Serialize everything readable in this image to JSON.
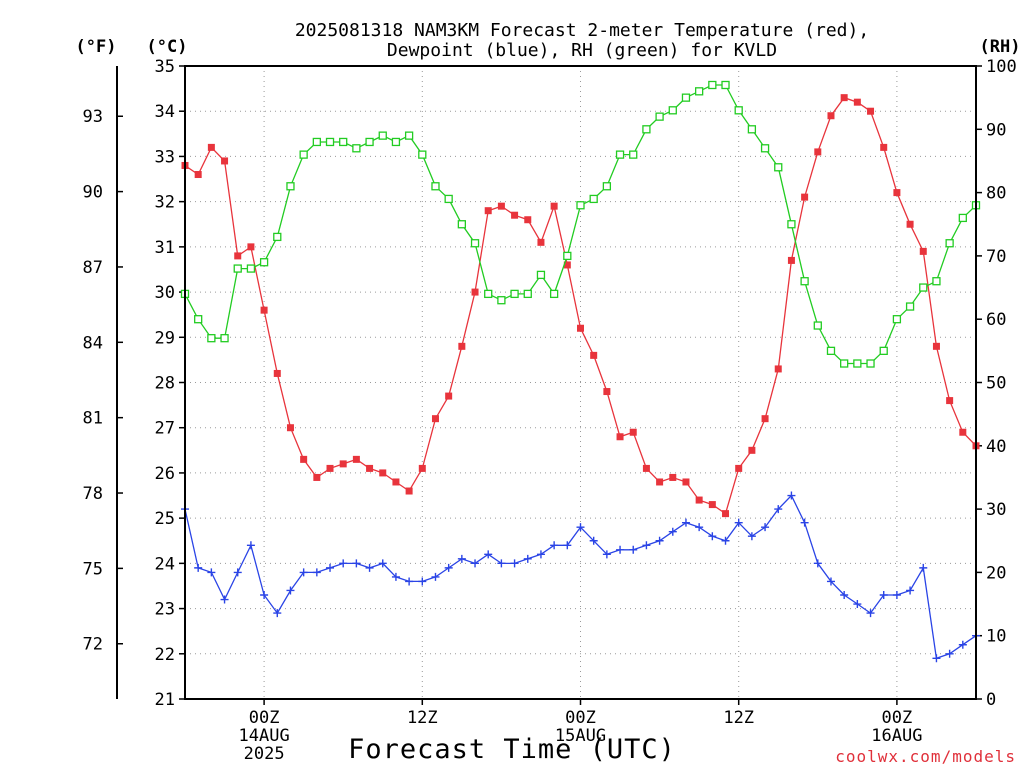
{
  "chart_data": {
    "type": "line",
    "title_line1": "2025081318 NAM3KM Forecast 2-meter Temperature (red),",
    "title_line2": "Dewpoint (blue), RH (green) for KVLD",
    "unit_f": "(°F)",
    "unit_c": "(°C)",
    "unit_rh": "(RH)",
    "xlabel": "Forecast Time (UTC)",
    "credit": "coolwx.com/models",
    "ylim_c": [
      21,
      35
    ],
    "ylim_rh": [
      0,
      100
    ],
    "yticks_c": [
      "21",
      "22",
      "23",
      "24",
      "25",
      "26",
      "27",
      "28",
      "29",
      "30",
      "31",
      "32",
      "33",
      "34",
      "35"
    ],
    "yticks_f": [
      "72",
      "75",
      "78",
      "81",
      "84",
      "87",
      "90",
      "93"
    ],
    "yticks_rh": [
      "0",
      "10",
      "20",
      "30",
      "40",
      "50",
      "60",
      "70",
      "80",
      "90",
      "100"
    ],
    "x_range_hours": [
      0,
      60
    ],
    "x_ticks": [
      {
        "hour": 6,
        "label": "00Z",
        "sub1": "14AUG",
        "sub2": "2025"
      },
      {
        "hour": 18,
        "label": "12Z",
        "sub1": "",
        "sub2": ""
      },
      {
        "hour": 30,
        "label": "00Z",
        "sub1": "15AUG",
        "sub2": ""
      },
      {
        "hour": 42,
        "label": "12Z",
        "sub1": "",
        "sub2": ""
      },
      {
        "hour": 54,
        "label": "00Z",
        "sub1": "16AUG",
        "sub2": ""
      }
    ],
    "grid": true,
    "colors": {
      "temperature": "#e8343c",
      "dewpoint": "#2a44e6",
      "rh": "#22cc22"
    },
    "series": [
      {
        "key": "temperature",
        "axis": "C",
        "values": [
          32.8,
          32.6,
          33.2,
          32.9,
          30.8,
          31.0,
          29.6,
          28.2,
          27.0,
          26.3,
          25.9,
          26.1,
          26.2,
          26.3,
          26.1,
          26.0,
          25.8,
          25.6,
          26.1,
          27.2,
          27.7,
          28.8,
          30.0,
          31.8,
          31.9,
          31.7,
          31.6,
          31.1,
          31.9,
          30.6,
          29.2,
          28.6,
          27.8,
          26.8,
          26.9,
          26.1,
          25.8,
          25.9,
          25.8,
          25.4,
          25.3,
          25.1,
          26.1,
          26.5,
          27.2,
          28.3,
          30.7,
          32.1,
          33.1,
          33.9,
          34.3,
          34.2,
          34.0,
          33.2,
          32.2,
          31.5,
          30.9,
          28.8,
          27.6,
          26.9,
          26.6
        ],
        "hours": [
          0,
          1,
          2,
          3,
          4,
          5,
          6,
          7,
          8,
          9,
          10,
          11,
          12,
          13,
          14,
          15,
          16,
          17,
          18,
          19,
          20,
          21,
          22,
          23,
          24,
          25,
          26,
          27,
          28,
          29,
          30,
          31,
          32,
          33,
          34,
          35,
          36,
          37,
          38,
          39,
          40,
          41,
          42,
          43,
          44,
          45,
          46,
          47,
          48,
          49,
          50,
          51,
          52,
          53,
          54,
          55,
          56,
          57,
          58,
          59,
          60
        ]
      },
      {
        "key": "dewpoint",
        "axis": "C",
        "values": [
          25.2,
          23.9,
          23.8,
          23.2,
          23.8,
          24.4,
          23.3,
          22.9,
          23.4,
          23.8,
          23.8,
          23.9,
          24.0,
          24.0,
          23.9,
          24.0,
          23.7,
          23.6,
          23.6,
          23.7,
          23.9,
          24.1,
          24.0,
          24.2,
          24.0,
          24.0,
          24.1,
          24.2,
          24.4,
          24.4,
          24.8,
          24.5,
          24.2,
          24.3,
          24.3,
          24.4,
          24.5,
          24.7,
          24.9,
          24.8,
          24.6,
          24.5,
          24.9,
          24.6,
          24.8,
          25.2,
          25.5,
          24.9,
          24.0,
          23.6,
          23.3,
          23.1,
          22.9,
          23.3,
          23.3,
          23.4,
          23.9,
          21.9,
          22.0,
          22.2,
          22.4
        ],
        "hours": [
          0,
          1,
          2,
          3,
          4,
          5,
          6,
          7,
          8,
          9,
          10,
          11,
          12,
          13,
          14,
          15,
          16,
          17,
          18,
          19,
          20,
          21,
          22,
          23,
          24,
          25,
          26,
          27,
          28,
          29,
          30,
          31,
          32,
          33,
          34,
          35,
          36,
          37,
          38,
          39,
          40,
          41,
          42,
          43,
          44,
          45,
          46,
          47,
          48,
          49,
          50,
          51,
          52,
          53,
          54,
          55,
          56,
          57,
          58,
          59,
          60
        ]
      },
      {
        "key": "rh",
        "axis": "RH",
        "values": [
          64,
          60,
          57,
          57,
          68,
          68,
          69,
          73,
          81,
          86,
          88,
          88,
          88,
          87,
          88,
          89,
          88,
          89,
          86,
          81,
          79,
          75,
          72,
          64,
          63,
          64,
          64,
          67,
          64,
          70,
          78,
          79,
          81,
          86,
          86,
          90,
          92,
          93,
          95,
          96,
          97,
          97,
          93,
          90,
          87,
          84,
          75,
          66,
          59,
          55,
          53,
          53,
          53,
          55,
          60,
          62,
          65,
          66,
          72,
          76,
          78
        ],
        "hours": [
          0,
          1,
          2,
          3,
          4,
          5,
          6,
          7,
          8,
          9,
          10,
          11,
          12,
          13,
          14,
          15,
          16,
          17,
          18,
          19,
          20,
          21,
          22,
          23,
          24,
          25,
          26,
          27,
          28,
          29,
          30,
          31,
          32,
          33,
          34,
          35,
          36,
          37,
          38,
          39,
          40,
          41,
          42,
          43,
          44,
          45,
          46,
          47,
          48,
          49,
          50,
          51,
          52,
          53,
          54,
          55,
          56,
          57,
          58,
          59,
          60
        ]
      }
    ]
  }
}
